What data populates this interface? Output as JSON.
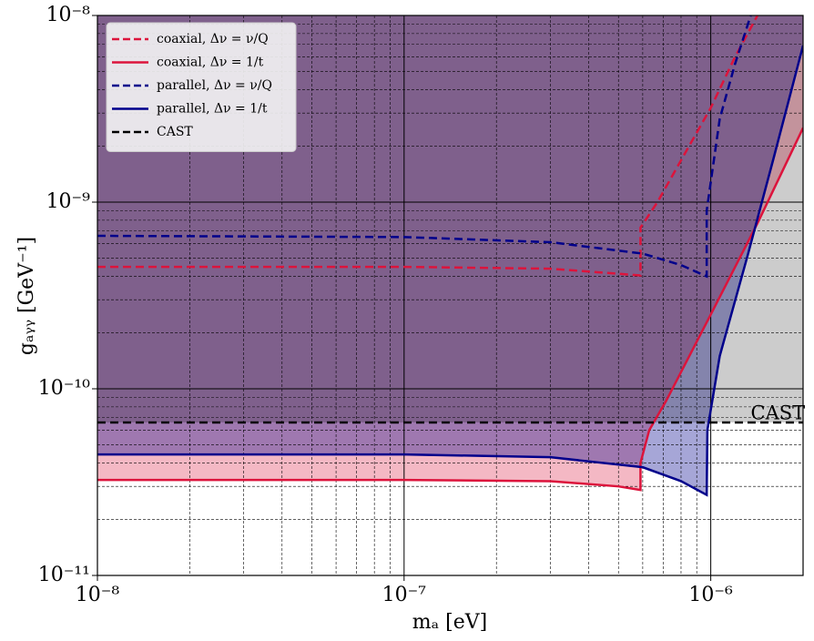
{
  "chart_data": {
    "type": "line",
    "xlabel": "mₐ [eV]",
    "ylabel": "gₐᵧᵧ [GeV⁻¹]",
    "xscale": "log",
    "yscale": "log",
    "xlim": [
      1e-08,
      2e-06
    ],
    "ylim": [
      1e-11,
      1e-08
    ],
    "xticks": [
      {
        "value": 1e-08,
        "label": "10⁻⁸"
      },
      {
        "value": 1e-07,
        "label": "10⁻⁷"
      },
      {
        "value": 1e-06,
        "label": "10⁻⁶"
      }
    ],
    "yticks": [
      {
        "value": 1e-11,
        "label": "10⁻¹¹"
      },
      {
        "value": 1e-10,
        "label": "10⁻¹⁰"
      },
      {
        "value": 1e-09,
        "label": "10⁻⁹"
      },
      {
        "value": 1e-08,
        "label": "10⁻⁸"
      }
    ],
    "grid": "both",
    "legend": "upper left",
    "series": [
      {
        "name": "coaxial,  Δν = ν/Q",
        "color": "#dc143c",
        "dash": true,
        "fill": false,
        "x": [
          1e-08,
          1e-07,
          3e-07,
          5.9e-07,
          5.9e-07,
          6.7e-07,
          8.2e-07,
          1e-06,
          1.2e-06,
          1.42e-06
        ],
        "values": [
          4.5e-10,
          4.5e-10,
          4.4e-10,
          4.05e-10,
          7.3e-10,
          1e-09,
          1.8e-09,
          3.2e-09,
          6e-09,
          1e-08
        ]
      },
      {
        "name": "coaxial,  Δν = 1/t",
        "color": "#dc143c",
        "dash": false,
        "fill": true,
        "fill_opacity": 0.3,
        "x": [
          1e-08,
          1e-07,
          3e-07,
          5e-07,
          5.9e-07,
          5.9e-07,
          6.3e-07,
          7.15e-07,
          1e-06,
          1.42e-06,
          2e-06
        ],
        "values": [
          3.25e-11,
          3.25e-11,
          3.2e-11,
          3e-11,
          2.87e-11,
          4e-11,
          6e-11,
          8.6e-11,
          2.5e-10,
          7.7e-10,
          2.5e-09
        ]
      },
      {
        "name": "parallel, Δν = ν/Q",
        "color": "#00008b",
        "dash": true,
        "fill": false,
        "x": [
          1e-08,
          1e-07,
          3e-07,
          6e-07,
          8e-07,
          9.7e-07,
          9.7e-07,
          1.07e-06,
          1.2e-06,
          1.35e-06
        ],
        "values": [
          6.6e-10,
          6.5e-10,
          6.1e-10,
          5.3e-10,
          4.6e-10,
          4e-10,
          9e-10,
          2.8e-09,
          5.5e-09,
          1e-08
        ]
      },
      {
        "name": "parallel, Δν = 1/t",
        "color": "#00008b",
        "dash": false,
        "fill": true,
        "fill_opacity": 0.35,
        "x": [
          1e-08,
          1e-07,
          3e-07,
          6e-07,
          8e-07,
          9.7e-07,
          9.75e-07,
          1.07e-06,
          1.32e-06,
          1.6e-06,
          2e-06
        ],
        "values": [
          4.45e-11,
          4.45e-11,
          4.3e-11,
          3.8e-11,
          3.2e-11,
          2.7e-11,
          6e-11,
          1.5e-10,
          5.2e-10,
          1.7e-09,
          6.9e-09
        ]
      },
      {
        "name": "CAST",
        "color": "#000000",
        "dash": true,
        "fill": true,
        "fill_opacity": 0.2,
        "x": [
          1e-08,
          2e-06
        ],
        "values": [
          6.6e-11,
          6.6e-11
        ]
      }
    ],
    "annotations": [
      {
        "text": "CAST",
        "x": 1.35e-06,
        "y": 7.3e-11
      }
    ]
  }
}
